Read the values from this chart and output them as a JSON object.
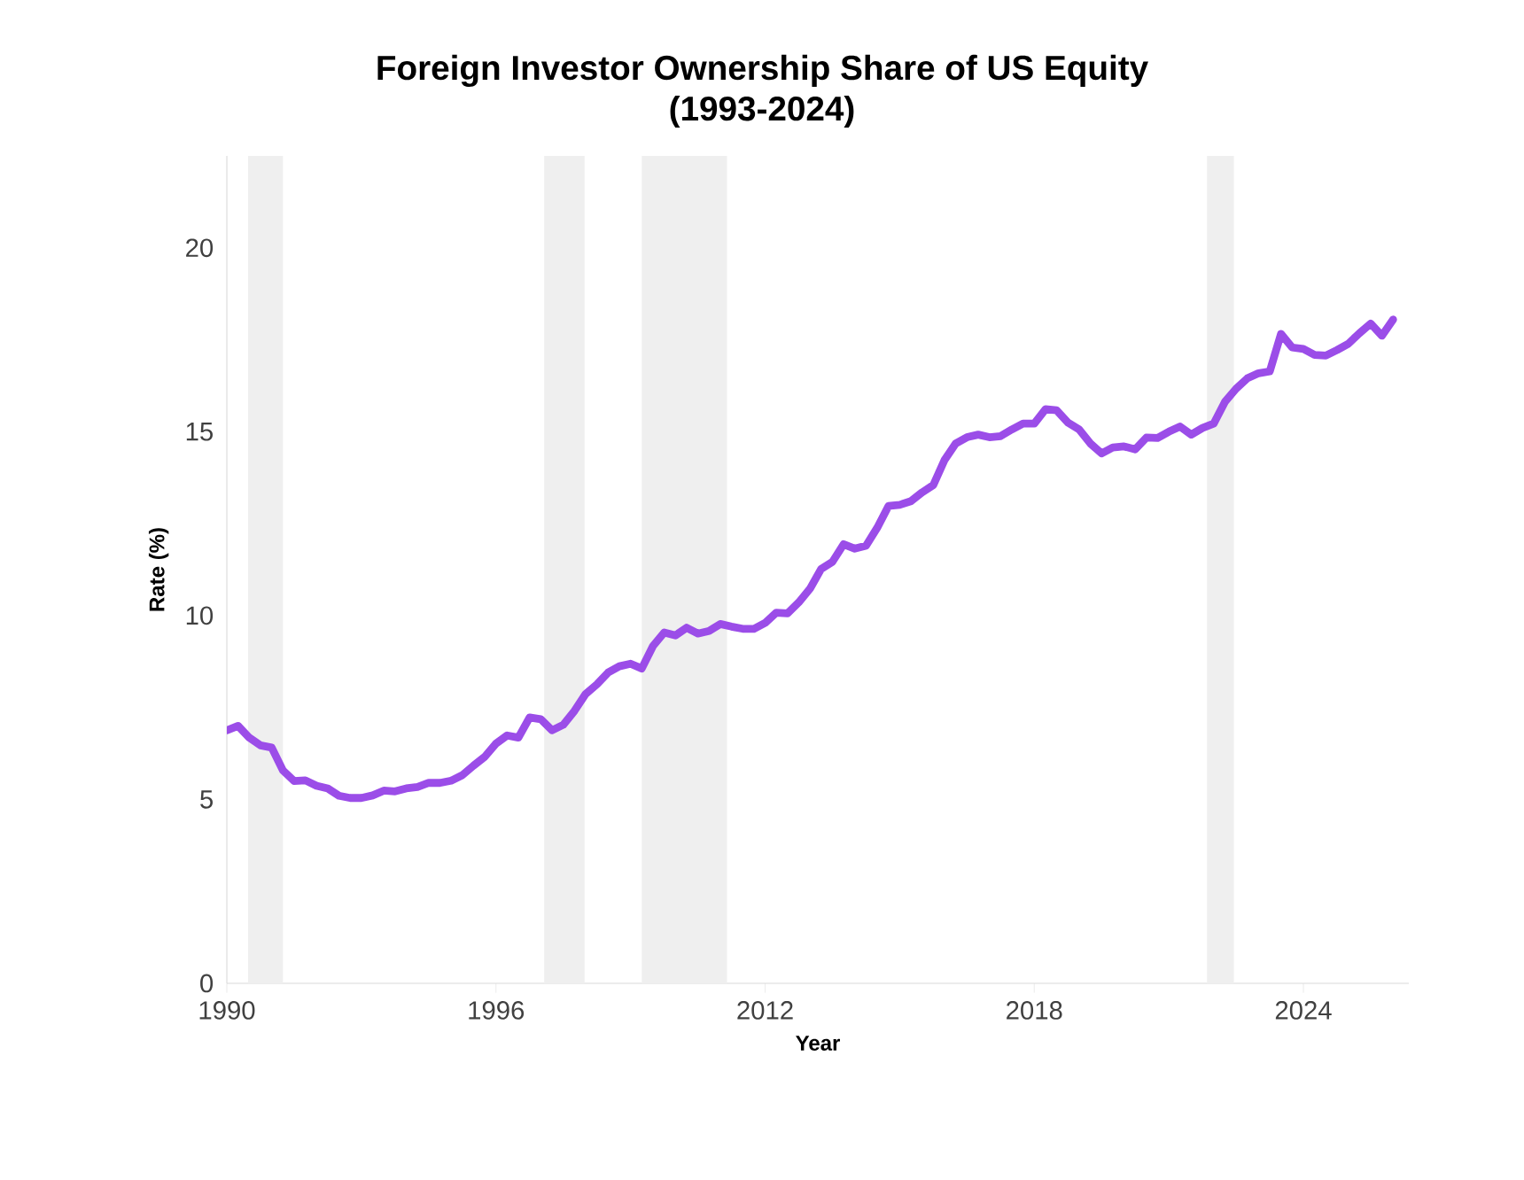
{
  "chart_data": {
    "type": "line",
    "title": "Foreign Investor Ownership Share of US Equity",
    "subtitle": "(1993-2024)",
    "xlabel": "Year",
    "ylabel": "Rate (%)",
    "ylim": [
      0,
      22.5
    ],
    "yticks": [
      0,
      5,
      10,
      15,
      20
    ],
    "categories": [
      "1990",
      null,
      null,
      null,
      null,
      null,
      null,
      null,
      null,
      null,
      null,
      null,
      null,
      null,
      null,
      null,
      null,
      null,
      null,
      null,
      null,
      null,
      null,
      null,
      "1996",
      null,
      null,
      null,
      null,
      null,
      null,
      null,
      null,
      null,
      null,
      null,
      null,
      null,
      null,
      null,
      null,
      null,
      null,
      null,
      null,
      null,
      null,
      null,
      "2012",
      null,
      null,
      null,
      null,
      null,
      null,
      null,
      null,
      null,
      null,
      null,
      null,
      null,
      null,
      null,
      null,
      null,
      null,
      null,
      null,
      null,
      null,
      null,
      "2018",
      null,
      null,
      null,
      null,
      null,
      null,
      null,
      null,
      null,
      null,
      null,
      null,
      null,
      null,
      null,
      null,
      null,
      null,
      null,
      null,
      null,
      null,
      null,
      "2024",
      null,
      null,
      null,
      null,
      null,
      null,
      null,
      null
    ],
    "color": "#9b4de8",
    "values": [
      6.88,
      7.0,
      6.68,
      6.47,
      6.41,
      5.79,
      5.5,
      5.52,
      5.37,
      5.3,
      5.1,
      5.04,
      5.04,
      5.11,
      5.24,
      5.22,
      5.3,
      5.34,
      5.45,
      5.45,
      5.51,
      5.66,
      5.92,
      6.16,
      6.52,
      6.74,
      6.68,
      7.23,
      7.18,
      6.88,
      7.03,
      7.41,
      7.87,
      8.13,
      8.45,
      8.62,
      8.69,
      8.56,
      9.17,
      9.54,
      9.46,
      9.67,
      9.51,
      9.58,
      9.77,
      9.7,
      9.64,
      9.64,
      9.8,
      10.08,
      10.06,
      10.36,
      10.73,
      11.27,
      11.46,
      11.94,
      11.82,
      11.9,
      12.39,
      12.98,
      13.01,
      13.11,
      13.35,
      13.55,
      14.23,
      14.68,
      14.85,
      14.92,
      14.85,
      14.88,
      15.06,
      15.22,
      15.22,
      15.61,
      15.58,
      15.25,
      15.06,
      14.68,
      14.41,
      14.57,
      14.6,
      14.52,
      14.84,
      14.83,
      15.0,
      15.14,
      14.92,
      15.1,
      15.22,
      15.81,
      16.17,
      16.45,
      16.59,
      16.64,
      17.66,
      17.29,
      17.25,
      17.09,
      17.07,
      17.22,
      17.39,
      17.68,
      17.94,
      17.61,
      18.05
    ]
  }
}
